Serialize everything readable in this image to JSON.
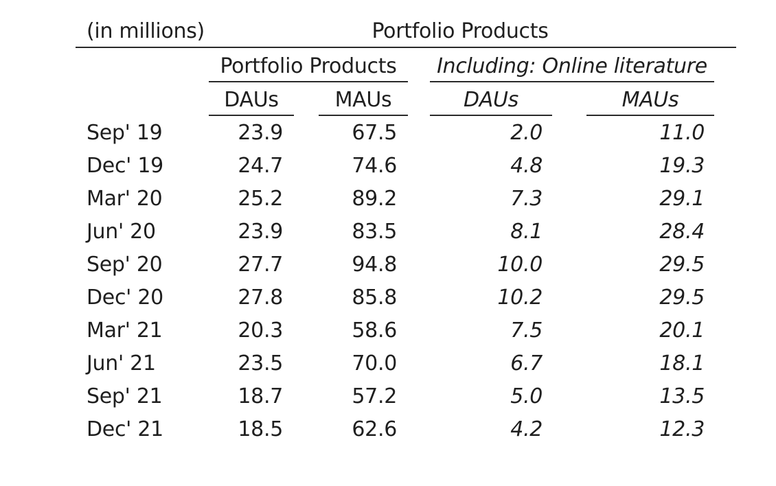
{
  "unit_label": "(in millions)",
  "top_header": "Portfolio Products",
  "group_headers": {
    "portfolio": "Portfolio Products",
    "online": "Including: Online literature"
  },
  "column_headers": {
    "pp_daus": "DAUs",
    "pp_maus": "MAUs",
    "ol_daus": "DAUs",
    "ol_maus": "MAUs"
  },
  "rows": [
    {
      "period": "Sep' 19",
      "pp_daus": "23.9",
      "pp_maus": "67.5",
      "ol_daus": "2.0",
      "ol_maus": "11.0"
    },
    {
      "period": "Dec' 19",
      "pp_daus": "24.7",
      "pp_maus": "74.6",
      "ol_daus": "4.8",
      "ol_maus": "19.3"
    },
    {
      "period": "Mar' 20",
      "pp_daus": "25.2",
      "pp_maus": "89.2",
      "ol_daus": "7.3",
      "ol_maus": "29.1"
    },
    {
      "period": "Jun' 20",
      "pp_daus": "23.9",
      "pp_maus": "83.5",
      "ol_daus": "8.1",
      "ol_maus": "28.4"
    },
    {
      "period": "Sep' 20",
      "pp_daus": "27.7",
      "pp_maus": "94.8",
      "ol_daus": "10.0",
      "ol_maus": "29.5"
    },
    {
      "period": "Dec' 20",
      "pp_daus": "27.8",
      "pp_maus": "85.8",
      "ol_daus": "10.2",
      "ol_maus": "29.5"
    },
    {
      "period": "Mar' 21",
      "pp_daus": "20.3",
      "pp_maus": "58.6",
      "ol_daus": "7.5",
      "ol_maus": "20.1"
    },
    {
      "period": "Jun' 21",
      "pp_daus": "23.5",
      "pp_maus": "70.0",
      "ol_daus": "6.7",
      "ol_maus": "18.1"
    },
    {
      "period": "Sep' 21",
      "pp_daus": "18.7",
      "pp_maus": "57.2",
      "ol_daus": "5.0",
      "ol_maus": "13.5"
    },
    {
      "period": "Dec' 21",
      "pp_daus": "18.5",
      "pp_maus": "62.6",
      "ol_daus": "4.2",
      "ol_maus": "12.3"
    }
  ]
}
